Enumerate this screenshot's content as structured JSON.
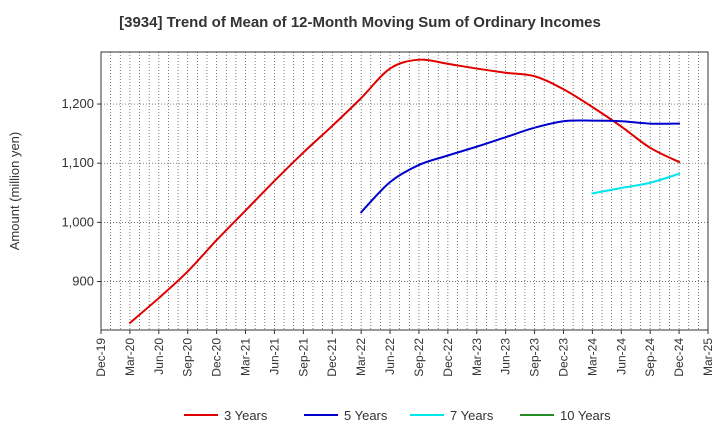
{
  "chart_data": {
    "type": "line",
    "title": "[3934]  Trend of Mean of 12-Month Moving Sum of Ordinary Incomes",
    "xlabel": "",
    "ylabel": "Amount (million yen)",
    "ylim": [
      818,
      1288
    ],
    "yticks": [
      900,
      1000,
      1100,
      1200
    ],
    "ytick_labels": [
      "900",
      "1,000",
      "1,100",
      "1,200"
    ],
    "categories": [
      "Dec-19",
      "Mar-20",
      "Jun-20",
      "Sep-20",
      "Dec-20",
      "Mar-21",
      "Jun-21",
      "Sep-21",
      "Dec-21",
      "Mar-22",
      "Jun-22",
      "Sep-22",
      "Dec-22",
      "Mar-23",
      "Jun-23",
      "Sep-23",
      "Dec-23",
      "Mar-24",
      "Jun-24",
      "Sep-24",
      "Dec-24",
      "Mar-25"
    ],
    "grid": "vertical monthly dotted, horizontal dotted",
    "legend_position": "bottom",
    "series": [
      {
        "name": "3 Years",
        "color": "#e00000",
        "values": [
          null,
          830,
          872,
          917,
          970,
          1020,
          1070,
          1118,
          1163,
          1210,
          1260,
          1275,
          1268,
          1260,
          1253,
          1247,
          1225,
          1195,
          1162,
          1126,
          1102,
          null
        ]
      },
      {
        "name": "5 Years",
        "color": "#0000cc",
        "values": [
          null,
          null,
          null,
          null,
          null,
          null,
          null,
          null,
          null,
          1017,
          1068,
          1097,
          1113,
          1128,
          1144,
          1160,
          1171,
          1172,
          1171,
          1167,
          1167,
          null
        ]
      },
      {
        "name": "7 Years",
        "color": "#00e5ee",
        "values": [
          null,
          null,
          null,
          null,
          null,
          null,
          null,
          null,
          null,
          null,
          null,
          null,
          null,
          null,
          null,
          null,
          null,
          1049,
          1058,
          1067,
          1082,
          null
        ]
      },
      {
        "name": "10 Years",
        "color": "#228b22",
        "values": [
          null,
          null,
          null,
          null,
          null,
          null,
          null,
          null,
          null,
          null,
          null,
          null,
          null,
          null,
          null,
          null,
          null,
          null,
          null,
          null,
          null,
          null
        ]
      }
    ]
  }
}
